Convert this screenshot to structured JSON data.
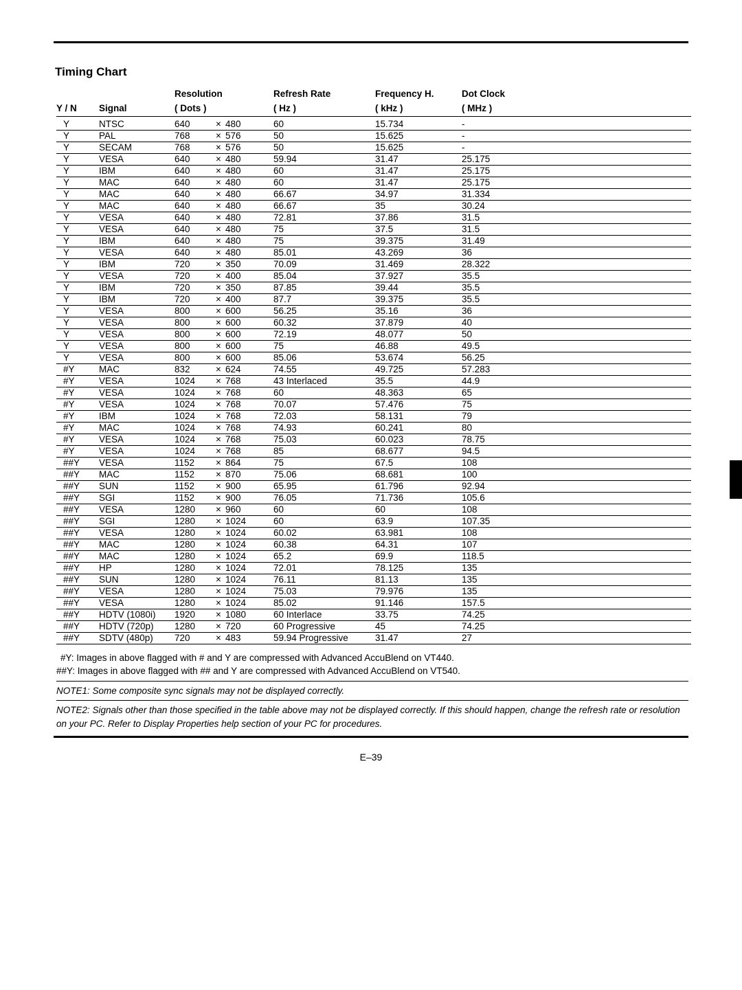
{
  "title": "Timing Chart",
  "headers": {
    "yn": "Y / N",
    "signal": "Signal",
    "resolution_top": "Resolution",
    "resolution_bot": "( Dots )",
    "refresh_top": "Refresh Rate",
    "refresh_bot": "( Hz )",
    "freq_top": "Frequency H.",
    "freq_bot": "( kHz )",
    "clock_top": "Dot Clock",
    "clock_bot": "( MHz )"
  },
  "rows": [
    {
      "yn": "Y",
      "sig": "NTSC",
      "rw": "640",
      "rh": "480",
      "rate": "60",
      "freq": "15.734",
      "clock": "-"
    },
    {
      "yn": "Y",
      "sig": "PAL",
      "rw": "768",
      "rh": "576",
      "rate": "50",
      "freq": "15.625",
      "clock": "-"
    },
    {
      "yn": "Y",
      "sig": "SECAM",
      "rw": "768",
      "rh": "576",
      "rate": "50",
      "freq": "15.625",
      "clock": "-"
    },
    {
      "yn": "Y",
      "sig": "VESA",
      "rw": "640",
      "rh": "480",
      "rate": "59.94",
      "freq": "31.47",
      "clock": "25.175"
    },
    {
      "yn": "Y",
      "sig": "IBM",
      "rw": "640",
      "rh": "480",
      "rate": "60",
      "freq": "31.47",
      "clock": "25.175"
    },
    {
      "yn": "Y",
      "sig": "MAC",
      "rw": "640",
      "rh": "480",
      "rate": "60",
      "freq": "31.47",
      "clock": "25.175"
    },
    {
      "yn": "Y",
      "sig": "MAC",
      "rw": "640",
      "rh": "480",
      "rate": "66.67",
      "freq": "34.97",
      "clock": "31.334"
    },
    {
      "yn": "Y",
      "sig": "MAC",
      "rw": "640",
      "rh": "480",
      "rate": "66.67",
      "freq": "35",
      "clock": "30.24"
    },
    {
      "yn": "Y",
      "sig": "VESA",
      "rw": "640",
      "rh": "480",
      "rate": "72.81",
      "freq": "37.86",
      "clock": "31.5"
    },
    {
      "yn": "Y",
      "sig": "VESA",
      "rw": "640",
      "rh": "480",
      "rate": "75",
      "freq": "37.5",
      "clock": "31.5"
    },
    {
      "yn": "Y",
      "sig": "IBM",
      "rw": "640",
      "rh": "480",
      "rate": "75",
      "freq": "39.375",
      "clock": "31.49"
    },
    {
      "yn": "Y",
      "sig": "VESA",
      "rw": "640",
      "rh": "480",
      "rate": "85.01",
      "freq": "43.269",
      "clock": "36"
    },
    {
      "yn": "Y",
      "sig": "IBM",
      "rw": "720",
      "rh": "350",
      "rate": "70.09",
      "freq": "31.469",
      "clock": "28.322"
    },
    {
      "yn": "Y",
      "sig": "VESA",
      "rw": "720",
      "rh": "400",
      "rate": "85.04",
      "freq": "37.927",
      "clock": "35.5"
    },
    {
      "yn": "Y",
      "sig": "IBM",
      "rw": "720",
      "rh": "350",
      "rate": "87.85",
      "freq": "39.44",
      "clock": "35.5"
    },
    {
      "yn": "Y",
      "sig": "IBM",
      "rw": "720",
      "rh": "400",
      "rate": "87.7",
      "freq": "39.375",
      "clock": "35.5"
    },
    {
      "yn": "Y",
      "sig": "VESA",
      "rw": "800",
      "rh": "600",
      "rate": "56.25",
      "freq": "35.16",
      "clock": "36"
    },
    {
      "yn": "Y",
      "sig": "VESA",
      "rw": "800",
      "rh": "600",
      "rate": "60.32",
      "freq": "37.879",
      "clock": "40"
    },
    {
      "yn": "Y",
      "sig": "VESA",
      "rw": "800",
      "rh": "600",
      "rate": "72.19",
      "freq": "48.077",
      "clock": "50"
    },
    {
      "yn": "Y",
      "sig": "VESA",
      "rw": "800",
      "rh": "600",
      "rate": "75",
      "freq": "46.88",
      "clock": "49.5"
    },
    {
      "yn": "Y",
      "sig": "VESA",
      "rw": "800",
      "rh": "600",
      "rate": "85.06",
      "freq": "53.674",
      "clock": "56.25"
    },
    {
      "yn": "#Y",
      "sig": "MAC",
      "rw": "832",
      "rh": "624",
      "rate": "74.55",
      "freq": "49.725",
      "clock": "57.283"
    },
    {
      "yn": "#Y",
      "sig": "VESA",
      "rw": "1024",
      "rh": "768",
      "rate": "43 Interlaced",
      "freq": "35.5",
      "clock": "44.9"
    },
    {
      "yn": "#Y",
      "sig": "VESA",
      "rw": "1024",
      "rh": "768",
      "rate": "60",
      "freq": "48.363",
      "clock": "65"
    },
    {
      "yn": "#Y",
      "sig": "VESA",
      "rw": "1024",
      "rh": "768",
      "rate": "70.07",
      "freq": "57.476",
      "clock": "75"
    },
    {
      "yn": "#Y",
      "sig": "IBM",
      "rw": "1024",
      "rh": "768",
      "rate": "72.03",
      "freq": "58.131",
      "clock": "79"
    },
    {
      "yn": "#Y",
      "sig": "MAC",
      "rw": "1024",
      "rh": "768",
      "rate": "74.93",
      "freq": "60.241",
      "clock": "80"
    },
    {
      "yn": "#Y",
      "sig": "VESA",
      "rw": "1024",
      "rh": "768",
      "rate": "75.03",
      "freq": "60.023",
      "clock": "78.75"
    },
    {
      "yn": "#Y",
      "sig": "VESA",
      "rw": "1024",
      "rh": "768",
      "rate": "85",
      "freq": "68.677",
      "clock": "94.5"
    },
    {
      "yn": "##Y",
      "sig": "VESA",
      "rw": "1152",
      "rh": "864",
      "rate": "75",
      "freq": "67.5",
      "clock": "108"
    },
    {
      "yn": "##Y",
      "sig": "MAC",
      "rw": "1152",
      "rh": "870",
      "rate": "75.06",
      "freq": "68.681",
      "clock": "100"
    },
    {
      "yn": "##Y",
      "sig": "SUN",
      "rw": "1152",
      "rh": "900",
      "rate": "65.95",
      "freq": "61.796",
      "clock": "92.94"
    },
    {
      "yn": "##Y",
      "sig": "SGI",
      "rw": "1152",
      "rh": "900",
      "rate": "76.05",
      "freq": "71.736",
      "clock": "105.6"
    },
    {
      "yn": "##Y",
      "sig": "VESA",
      "rw": "1280",
      "rh": "960",
      "rate": "60",
      "freq": "60",
      "clock": "108"
    },
    {
      "yn": "##Y",
      "sig": "SGI",
      "rw": "1280",
      "rh": "1024",
      "rate": "60",
      "freq": "63.9",
      "clock": "107.35"
    },
    {
      "yn": "##Y",
      "sig": "VESA",
      "rw": "1280",
      "rh": "1024",
      "rate": "60.02",
      "freq": "63.981",
      "clock": "108"
    },
    {
      "yn": "##Y",
      "sig": "MAC",
      "rw": "1280",
      "rh": "1024",
      "rate": "60.38",
      "freq": "64.31",
      "clock": "107"
    },
    {
      "yn": "##Y",
      "sig": "MAC",
      "rw": "1280",
      "rh": "1024",
      "rate": "65.2",
      "freq": "69.9",
      "clock": "118.5"
    },
    {
      "yn": "##Y",
      "sig": "HP",
      "rw": "1280",
      "rh": "1024",
      "rate": "72.01",
      "freq": "78.125",
      "clock": "135"
    },
    {
      "yn": "##Y",
      "sig": "SUN",
      "rw": "1280",
      "rh": "1024",
      "rate": "76.11",
      "freq": "81.13",
      "clock": "135"
    },
    {
      "yn": "##Y",
      "sig": "VESA",
      "rw": "1280",
      "rh": "1024",
      "rate": "75.03",
      "freq": "79.976",
      "clock": "135"
    },
    {
      "yn": "##Y",
      "sig": "VESA",
      "rw": "1280",
      "rh": "1024",
      "rate": "85.02",
      "freq": "91.146",
      "clock": "157.5"
    },
    {
      "yn": "##Y",
      "sig": "HDTV (1080i)",
      "rw": "1920",
      "rh": "1080",
      "rate": "60 Interlace",
      "freq": "33.75",
      "clock": "74.25"
    },
    {
      "yn": "##Y",
      "sig": "HDTV (720p)",
      "rw": "1280",
      "rh": "720",
      "rate": "60 Progressive",
      "freq": "45",
      "clock": "74.25"
    },
    {
      "yn": "##Y",
      "sig": "SDTV (480p)",
      "rw": "720",
      "rh": "483",
      "rate": "59.94 Progressive",
      "freq": "31.47",
      "clock": "27"
    }
  ],
  "notes": {
    "hashY": "#Y:  Images in above flagged with # and Y are compressed with Advanced AccuBlend on VT440.",
    "dhashY": "##Y:  Images in above flagged with ## and Y are compressed with Advanced AccuBlend on VT540.",
    "note1": "NOTE1: Some composite sync signals may not be displayed correctly.",
    "note2": "NOTE2: Signals other than those specified in the table above may not be displayed correctly. If this should happen, change the refresh rate or resolution on your PC.  Refer to Display Properties help section of your PC for procedures."
  },
  "footer": "E–39",
  "times": "×"
}
